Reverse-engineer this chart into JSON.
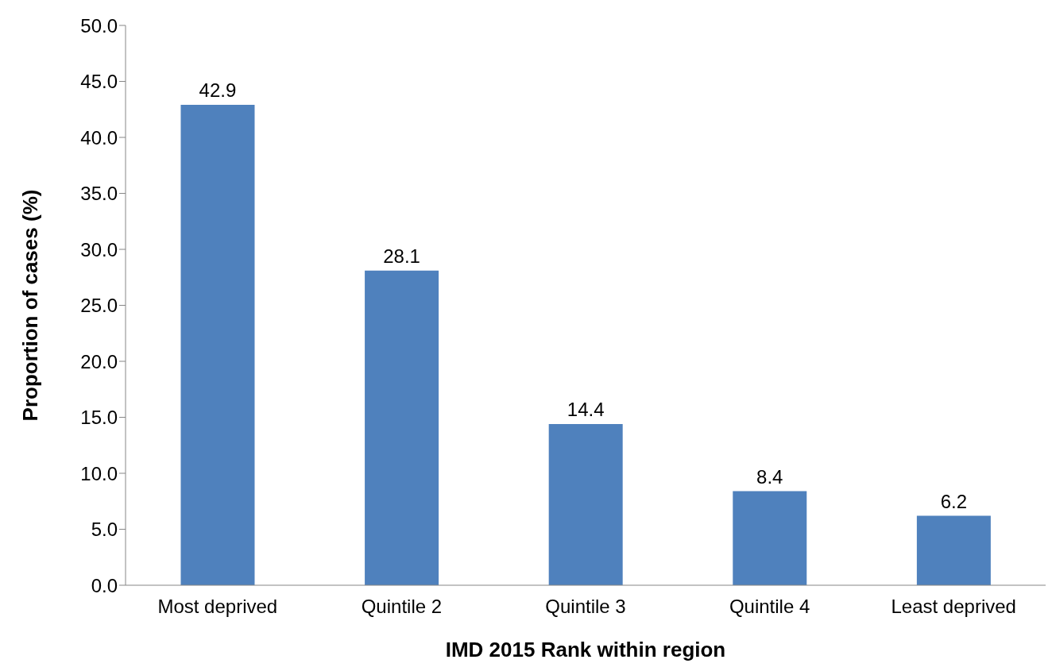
{
  "chart_data": {
    "type": "bar",
    "xlabel": "IMD 2015 Rank within region",
    "ylabel": "Proportion of cases (%)",
    "categories": [
      "Most deprived",
      "Quintile 2",
      "Quintile 3",
      "Quintile 4",
      "Least deprived"
    ],
    "values": [
      42.9,
      28.1,
      14.4,
      8.4,
      6.2
    ],
    "color": "#4f81bd",
    "data_labels": true,
    "ylim": [
      0,
      50
    ],
    "yticks": [
      {
        "value": 0,
        "label": "0.0"
      },
      {
        "value": 5,
        "label": "5.0"
      },
      {
        "value": 10,
        "label": "10.0"
      },
      {
        "value": 15,
        "label": "15.0"
      },
      {
        "value": 20,
        "label": "20.0"
      },
      {
        "value": 25,
        "label": "25.0"
      },
      {
        "value": 30,
        "label": "30.0"
      },
      {
        "value": 35,
        "label": "35.0"
      },
      {
        "value": 40,
        "label": "40.0"
      },
      {
        "value": 45,
        "label": "45.0"
      },
      {
        "value": 50,
        "label": "50.0"
      }
    ],
    "grid": false,
    "legend": false
  }
}
